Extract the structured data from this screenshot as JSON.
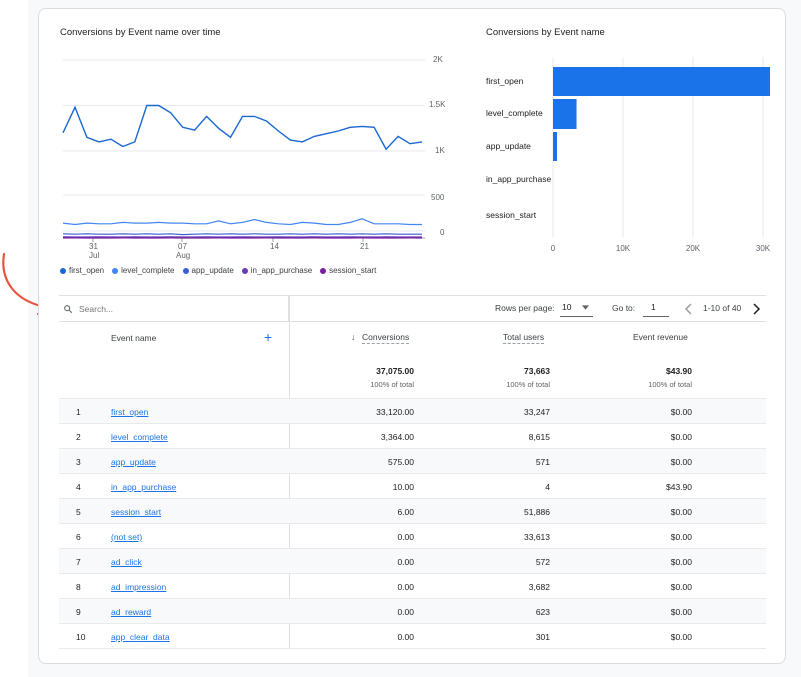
{
  "line_chart": {
    "title": "Conversions by Event name over time",
    "y_ticks_top": [
      "2K",
      "1.5K",
      "1K"
    ],
    "y_ticks_bottom": [
      "500",
      "0"
    ],
    "x_ticks": [
      {
        "day": "31",
        "month": "Jul"
      },
      {
        "day": "07",
        "month": "Aug"
      },
      {
        "day": "14",
        "month": ""
      },
      {
        "day": "21",
        "month": ""
      }
    ],
    "legend": [
      {
        "label": "first_open",
        "color": "#1967d2"
      },
      {
        "label": "level_complete",
        "color": "#4285f4"
      },
      {
        "label": "app_update",
        "color": "#3c5bd6"
      },
      {
        "label": "in_app_purchase",
        "color": "#673ab7"
      },
      {
        "label": "session_start",
        "color": "#7b1fa2"
      }
    ]
  },
  "chart_data": [
    {
      "type": "line",
      "title": "Conversions by Event name over time",
      "x": [
        "Jul 25",
        "Jul 26",
        "Jul 27",
        "Jul 28",
        "Jul 29",
        "Jul 30",
        "Jul 31",
        "Aug 01",
        "Aug 02",
        "Aug 03",
        "Aug 04",
        "Aug 05",
        "Aug 06",
        "Aug 07",
        "Aug 08",
        "Aug 09",
        "Aug 10",
        "Aug 11",
        "Aug 12",
        "Aug 13",
        "Aug 14",
        "Aug 15",
        "Aug 16",
        "Aug 17",
        "Aug 18",
        "Aug 19",
        "Aug 20",
        "Aug 21",
        "Aug 22",
        "Aug 23",
        "Aug 24"
      ],
      "series": [
        {
          "name": "first_open",
          "values": [
            1200,
            1480,
            1150,
            1100,
            1130,
            1050,
            1100,
            1500,
            1500,
            1420,
            1260,
            1230,
            1380,
            1250,
            1150,
            1380,
            1380,
            1330,
            1220,
            1120,
            1100,
            1160,
            1190,
            1220,
            1260,
            1270,
            1260,
            1020,
            1160,
            1080,
            1100
          ]
        },
        {
          "name": "level_complete",
          "values": [
            110,
            90,
            110,
            100,
            100,
            120,
            110,
            110,
            120,
            110,
            110,
            100,
            100,
            140,
            100,
            120,
            160,
            120,
            100,
            90,
            120,
            110,
            90,
            90,
            120,
            170,
            100,
            100,
            100,
            90,
            90
          ]
        },
        {
          "name": "app_update",
          "values": [
            30,
            25,
            30,
            25,
            25,
            30,
            25,
            30,
            25,
            30,
            20,
            25,
            30,
            25,
            30,
            25,
            30,
            25,
            25,
            30,
            25,
            30,
            25,
            30,
            25,
            30,
            25,
            30,
            25,
            25,
            25
          ]
        },
        {
          "name": "in_app_purchase",
          "values": [
            1,
            0,
            0,
            1,
            0,
            0,
            1,
            0,
            0,
            1,
            0,
            0,
            1,
            0,
            0,
            1,
            0,
            0,
            1,
            0,
            0,
            1,
            0,
            0,
            1,
            0,
            0,
            1,
            0,
            0,
            0
          ]
        },
        {
          "name": "session_start",
          "values": [
            0,
            1,
            0,
            0,
            0,
            1,
            0,
            0,
            0,
            1,
            0,
            0,
            0,
            1,
            0,
            0,
            0,
            1,
            0,
            0,
            0,
            1,
            0,
            0,
            0,
            1,
            0,
            0,
            0,
            1,
            0
          ]
        }
      ],
      "ylim": [
        0,
        2000
      ]
    },
    {
      "type": "bar",
      "orientation": "horizontal",
      "title": "Conversions by Event name",
      "categories": [
        "first_open",
        "level_complete",
        "app_update",
        "in_app_purchase",
        "session_start"
      ],
      "values": [
        33120,
        3364,
        575,
        10,
        6
      ],
      "x_ticks": [
        "0",
        "10K",
        "20K",
        "30K"
      ],
      "xlim": [
        0,
        35000
      ]
    }
  ],
  "bar_chart": {
    "title": "Conversions by Event name"
  },
  "toolbar": {
    "search_placeholder": "Search...",
    "rows_per_page_label": "Rows per page:",
    "rows_per_page_value": "10",
    "goto_label": "Go to:",
    "goto_value": "1",
    "range_label": "1-10 of 40"
  },
  "table": {
    "columns": {
      "event_name": "Event name",
      "conversions": "Conversions",
      "total_users": "Total users",
      "event_revenue": "Event revenue"
    },
    "totals": {
      "conversions": "37,075.00",
      "conversions_pct": "100% of total",
      "total_users": "73,663",
      "total_users_pct": "100% of total",
      "event_revenue": "$43.90",
      "event_revenue_pct": "100% of total"
    },
    "rows": [
      {
        "num": "1",
        "name": "first_open",
        "conversions": "33,120.00",
        "users": "33,247",
        "revenue": "$0.00"
      },
      {
        "num": "2",
        "name": "level_complete",
        "conversions": "3,364.00",
        "users": "8,615",
        "revenue": "$0.00"
      },
      {
        "num": "3",
        "name": "app_update",
        "conversions": "575.00",
        "users": "571",
        "revenue": "$0.00"
      },
      {
        "num": "4",
        "name": "in_app_purchase",
        "conversions": "10.00",
        "users": "4",
        "revenue": "$43.90"
      },
      {
        "num": "5",
        "name": "session_start",
        "conversions": "6.00",
        "users": "51,886",
        "revenue": "$0.00"
      },
      {
        "num": "6",
        "name": "(not set)",
        "conversions": "0.00",
        "users": "33,613",
        "revenue": "$0.00"
      },
      {
        "num": "7",
        "name": "ad_click",
        "conversions": "0.00",
        "users": "572",
        "revenue": "$0.00"
      },
      {
        "num": "8",
        "name": "ad_impression",
        "conversions": "0.00",
        "users": "3,682",
        "revenue": "$0.00"
      },
      {
        "num": "9",
        "name": "ad_reward",
        "conversions": "0.00",
        "users": "623",
        "revenue": "$0.00"
      },
      {
        "num": "10",
        "name": "app_clear_data",
        "conversions": "0.00",
        "users": "301",
        "revenue": "$0.00"
      }
    ]
  }
}
